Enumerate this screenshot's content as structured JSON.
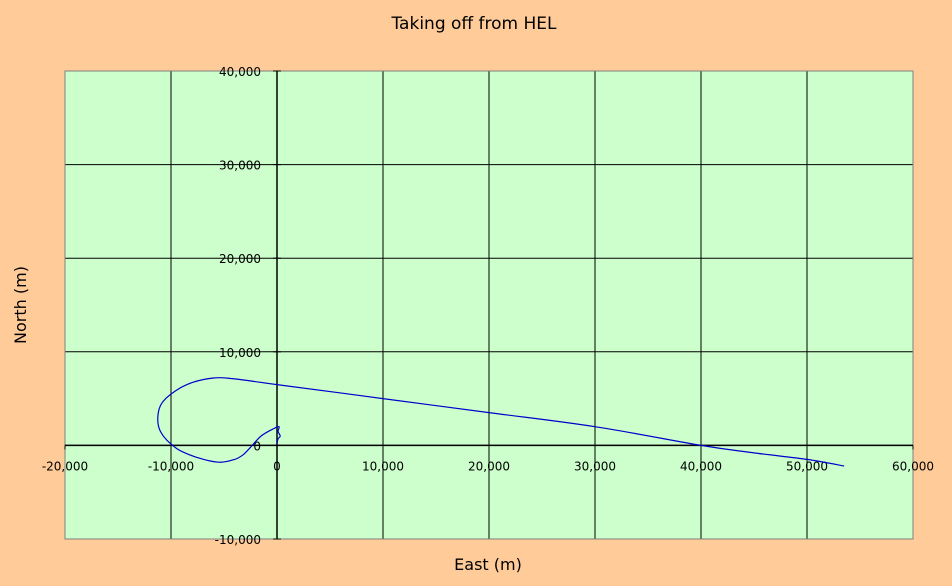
{
  "chart_data": {
    "type": "line",
    "title": "Taking off from HEL",
    "xlabel": "East (m)",
    "ylabel": "North (m)",
    "xlim": [
      -20000,
      60000
    ],
    "ylim": [
      -10000,
      40000
    ],
    "x_ticks": [
      -20000,
      -10000,
      0,
      10000,
      20000,
      30000,
      40000,
      50000,
      60000
    ],
    "y_ticks": [
      -10000,
      0,
      10000,
      20000,
      30000,
      40000
    ],
    "x_tick_labels": [
      "-20,000",
      "-10,000",
      "0",
      "10,000",
      "20,000",
      "30,000",
      "40,000",
      "50,000",
      "60,000"
    ],
    "y_tick_labels": [
      "-10,000",
      "0",
      "10,000",
      "20,000",
      "30,000",
      "40,000"
    ],
    "grid": true,
    "legend": "none",
    "colors": {
      "background": "#ffcc99",
      "plot_area": "#ccffcc",
      "grid": "#000000",
      "line": "#0000cc"
    },
    "series": [
      {
        "x": [
          0,
          100,
          300,
          100,
          200,
          -300,
          -1500,
          -2500,
          -3200,
          -4000,
          -5500,
          -7500,
          -9500,
          -11000,
          -11200,
          -10500,
          -8500,
          -6000,
          -4000,
          0,
          10000,
          20000,
          30000,
          40000,
          45000,
          50000,
          53500
        ],
        "y": [
          200,
          700,
          1000,
          1500,
          2000,
          1800,
          1000,
          -200,
          -1000,
          -1500,
          -1800,
          -1300,
          -300,
          1500,
          3500,
          5000,
          6500,
          7200,
          7100,
          6500,
          5000,
          3500,
          2000,
          0,
          -800,
          -1500,
          -2200
        ]
      }
    ]
  }
}
